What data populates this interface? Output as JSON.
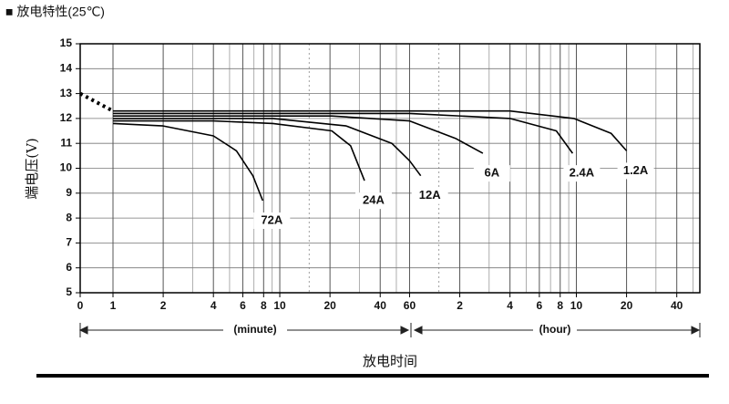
{
  "chart_data": {
    "type": "line",
    "title": "■ 放电特性(25℃)",
    "y_label": "端电压(V)",
    "x_label": "放电时间",
    "x_range_labels": [
      "(minute)",
      "(hour)"
    ],
    "xscale": "symlog",
    "xlim": [
      0,
      3300
    ],
    "xticks": [
      0,
      1,
      2,
      4,
      6,
      8,
      10,
      20,
      40,
      60,
      {
        "value": 120,
        "label": "2"
      },
      {
        "value": 240,
        "label": "4"
      },
      {
        "value": 360,
        "label": "6"
      },
      {
        "value": 480,
        "label": "8"
      },
      {
        "value": 600,
        "label": "10"
      },
      {
        "value": 1200,
        "label": "20"
      },
      {
        "value": 2400,
        "label": "40"
      }
    ],
    "xgrid_minor": [
      3,
      5,
      7,
      9,
      30,
      50,
      180,
      300,
      420,
      540,
      1800,
      3000
    ],
    "xgrid_dotted": [
      15,
      90
    ],
    "ylim": [
      5,
      15
    ],
    "yticks": [
      5,
      6,
      7,
      8,
      9,
      10,
      11,
      12,
      13,
      14,
      15
    ],
    "grid": true,
    "initial": {
      "x": [
        0,
        1
      ],
      "values": [
        13.0,
        12.3
      ]
    },
    "series": [
      {
        "name": "72A",
        "color": "#000000",
        "x": [
          1,
          2,
          4,
          5.5,
          6.9,
          7.9
        ],
        "values": [
          11.8,
          11.7,
          11.3,
          10.7,
          9.7,
          8.7
        ]
      },
      {
        "name": "24A",
        "color": "#000000",
        "x": [
          1,
          4,
          9.1,
          20.5,
          26.6,
          32.2
        ],
        "values": [
          11.9,
          11.9,
          11.8,
          11.5,
          10.9,
          9.5
        ]
      },
      {
        "name": "12A",
        "color": "#000000",
        "x": [
          1,
          9.1,
          25,
          47,
          60,
          70
        ],
        "values": [
          12.0,
          12.0,
          11.7,
          11.0,
          10.3,
          9.7
        ]
      },
      {
        "name": "6A",
        "color": "#000000",
        "x": [
          1,
          20.5,
          60,
          113,
          165
        ],
        "values": [
          12.1,
          12.1,
          11.9,
          11.2,
          10.6
        ]
      },
      {
        "name": "2.4A",
        "color": "#000000",
        "x": [
          1,
          60,
          240,
          455,
          570
        ],
        "values": [
          12.2,
          12.2,
          12.0,
          11.5,
          10.6
        ]
      },
      {
        "name": "1.2A",
        "color": "#000000",
        "x": [
          1,
          240,
          580,
          970,
          1200
        ],
        "values": [
          12.3,
          12.3,
          12.0,
          11.4,
          10.7
        ]
      }
    ]
  }
}
